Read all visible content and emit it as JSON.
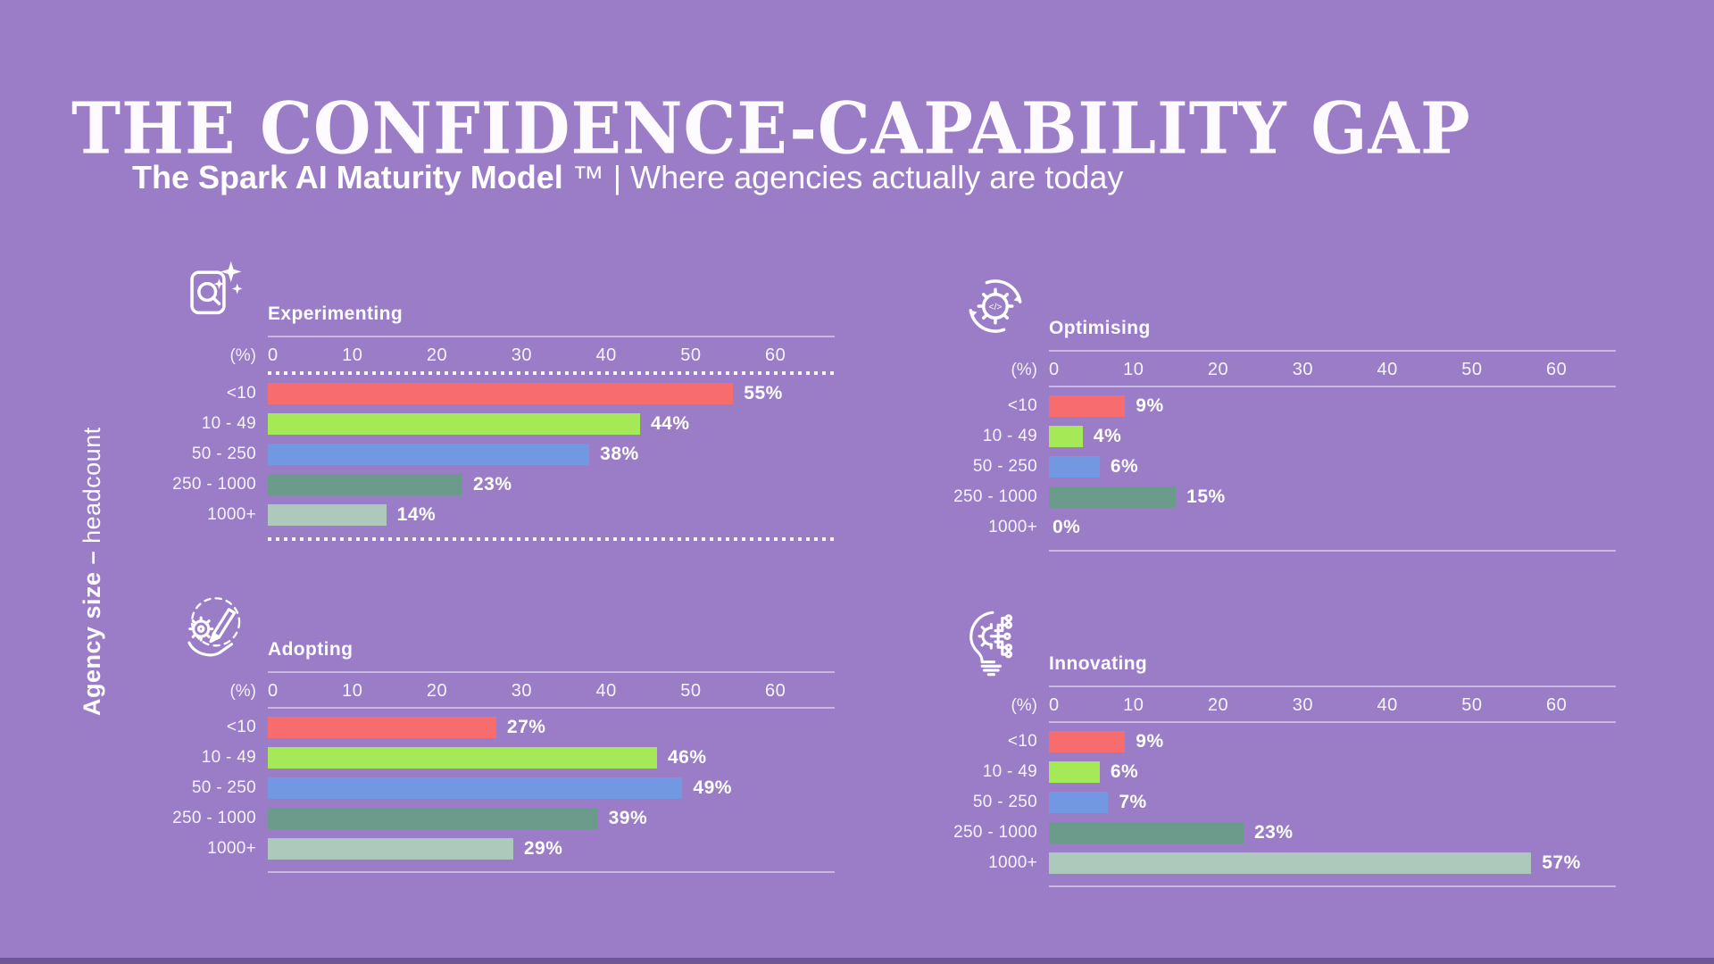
{
  "page": {
    "background": "#9b7dc7",
    "title": "THE CONFIDENCE-CAPABILITY GAP",
    "subtitle_bold": "The Spark AI Maturity Model",
    "subtitle_rest": " ™ | Where agencies actually are today",
    "y_axis_bold": "Agency size –",
    "y_axis_rest": " headcount"
  },
  "axis": {
    "unit_label": "(%)",
    "ticks": [
      "0",
      "10",
      "20",
      "30",
      "40",
      "50",
      "60"
    ],
    "max": 67,
    "value_suffix": "%"
  },
  "categories": [
    "<10",
    "10 - 49",
    "50 - 250",
    "250 - 1000",
    "1000+"
  ],
  "bar_colors": [
    "#f76d6d",
    "#a6e956",
    "#7298e2",
    "#6a9b8b",
    "#adc9bb"
  ],
  "charts": [
    {
      "id": "experimenting",
      "title": "Experimenting",
      "icon": "search-doc",
      "highlight": true,
      "values": [
        55,
        44,
        38,
        23,
        14
      ]
    },
    {
      "id": "optimising",
      "title": "Optimising",
      "icon": "gear-cycle",
      "highlight": false,
      "values": [
        9,
        4,
        6,
        15,
        0
      ]
    },
    {
      "id": "adopting",
      "title": "Adopting",
      "icon": "hand-gear",
      "highlight": false,
      "values": [
        27,
        46,
        49,
        39,
        29
      ]
    },
    {
      "id": "innovating",
      "title": "Innovating",
      "icon": "bulb-circuit",
      "highlight": false,
      "values": [
        9,
        6,
        7,
        23,
        57
      ]
    }
  ],
  "chart_data": [
    {
      "type": "bar",
      "orientation": "horizontal",
      "title": "Experimenting",
      "categories": [
        "<10",
        "10 - 49",
        "50 - 250",
        "250 - 1000",
        "1000+"
      ],
      "values": [
        55,
        44,
        38,
        23,
        14
      ],
      "value_unit": "%",
      "xlabel": "(%)",
      "ylabel": "Agency size – headcount",
      "xlim": [
        0,
        67
      ],
      "xticks": [
        0,
        10,
        20,
        30,
        40,
        50,
        60
      ],
      "grid": false,
      "legend": false,
      "highlighted_with_dotted_border": true,
      "bar_colors": [
        "#f76d6d",
        "#a6e956",
        "#7298e2",
        "#6a9b8b",
        "#adc9bb"
      ]
    },
    {
      "type": "bar",
      "orientation": "horizontal",
      "title": "Optimising",
      "categories": [
        "<10",
        "10 - 49",
        "50 - 250",
        "250 - 1000",
        "1000+"
      ],
      "values": [
        9,
        4,
        6,
        15,
        0
      ],
      "value_unit": "%",
      "xlabel": "(%)",
      "ylabel": "Agency size – headcount",
      "xlim": [
        0,
        67
      ],
      "xticks": [
        0,
        10,
        20,
        30,
        40,
        50,
        60
      ],
      "grid": false,
      "legend": false,
      "highlighted_with_dotted_border": false,
      "bar_colors": [
        "#f76d6d",
        "#a6e956",
        "#7298e2",
        "#6a9b8b",
        "#adc9bb"
      ]
    },
    {
      "type": "bar",
      "orientation": "horizontal",
      "title": "Adopting",
      "categories": [
        "<10",
        "10 - 49",
        "50 - 250",
        "250 - 1000",
        "1000+"
      ],
      "values": [
        27,
        46,
        49,
        39,
        29
      ],
      "value_unit": "%",
      "xlabel": "(%)",
      "ylabel": "Agency size – headcount",
      "xlim": [
        0,
        67
      ],
      "xticks": [
        0,
        10,
        20,
        30,
        40,
        50,
        60
      ],
      "grid": false,
      "legend": false,
      "highlighted_with_dotted_border": false,
      "bar_colors": [
        "#f76d6d",
        "#a6e956",
        "#7298e2",
        "#6a9b8b",
        "#adc9bb"
      ]
    },
    {
      "type": "bar",
      "orientation": "horizontal",
      "title": "Innovating",
      "categories": [
        "<10",
        "10 - 49",
        "50 - 250",
        "250 - 1000",
        "1000+"
      ],
      "values": [
        9,
        6,
        7,
        23,
        57
      ],
      "value_unit": "%",
      "xlabel": "(%)",
      "ylabel": "Agency size – headcount",
      "xlim": [
        0,
        67
      ],
      "xticks": [
        0,
        10,
        20,
        30,
        40,
        50,
        60
      ],
      "grid": false,
      "legend": false,
      "highlighted_with_dotted_border": false,
      "bar_colors": [
        "#f76d6d",
        "#a6e956",
        "#7298e2",
        "#6a9b8b",
        "#adc9bb"
      ]
    }
  ]
}
